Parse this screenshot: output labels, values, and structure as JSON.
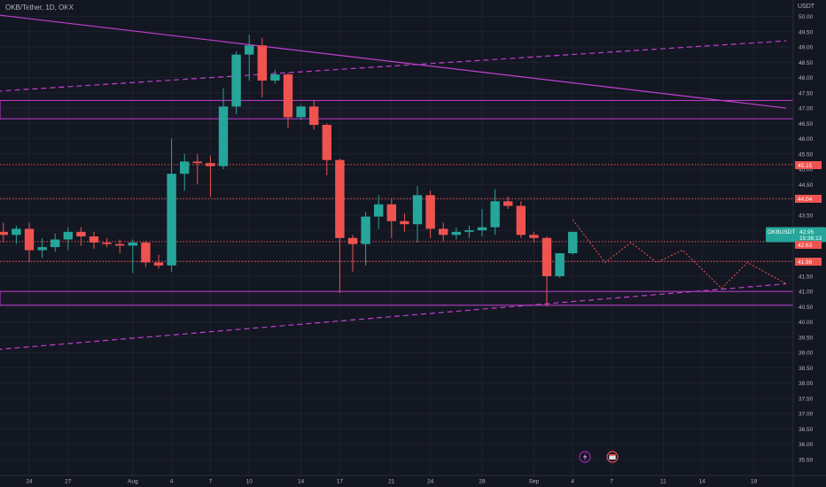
{
  "header": {
    "pair_title": "OKB/Tether, 1D, OKX",
    "currency": "USDT"
  },
  "colors": {
    "background": "#131722",
    "grid": "#1e222d",
    "up": "#26a69a",
    "down": "#ef5350",
    "trendline": "#c23fd0",
    "axis_text": "#b2b5be"
  },
  "price_labels": {
    "current_symbol": "OKBUSDT",
    "current_price": "42.95",
    "countdown": "15:38:13",
    "level_1": "45.15",
    "level_2": "44.04",
    "level_3": "42.63",
    "level_4": "41.98"
  },
  "icons": {
    "marker_1": "lightning-icon",
    "marker_2": "calendar-icon"
  },
  "chart_data": {
    "type": "candlestick",
    "title": "OKB/Tether, 1D, OKX",
    "y_unit": "USDT",
    "y_range": [
      35.3,
      50.25
    ],
    "y_ticks": [
      "50.00",
      "49.50",
      "49.00",
      "48.50",
      "48.00",
      "47.50",
      "47.00",
      "46.50",
      "46.00",
      "45.50",
      "45.00",
      "44.50",
      "44.00",
      "43.50",
      "43.00",
      "42.50",
      "42.00",
      "41.50",
      "41.00",
      "40.50",
      "40.00",
      "39.50",
      "39.00",
      "38.50",
      "38.00",
      "37.50",
      "37.00",
      "36.50",
      "36.00",
      "35.50"
    ],
    "x_ticks": [
      {
        "label": "24",
        "index": 2
      },
      {
        "label": "27",
        "index": 5
      },
      {
        "label": "Aug",
        "index": 10
      },
      {
        "label": "4",
        "index": 13
      },
      {
        "label": "7",
        "index": 16
      },
      {
        "label": "10",
        "index": 19
      },
      {
        "label": "14",
        "index": 23
      },
      {
        "label": "17",
        "index": 26
      },
      {
        "label": "21",
        "index": 30
      },
      {
        "label": "24",
        "index": 33
      },
      {
        "label": "28",
        "index": 37
      },
      {
        "label": "Sep",
        "index": 41
      },
      {
        "label": "4",
        "index": 44
      },
      {
        "label": "7",
        "index": 47
      },
      {
        "label": "11",
        "index": 51
      },
      {
        "label": "14",
        "index": 54
      },
      {
        "label": "18",
        "index": 58
      }
    ],
    "candles": [
      {
        "i": 0,
        "o": 42.95,
        "h": 43.25,
        "l": 42.6,
        "c": 42.85
      },
      {
        "i": 1,
        "o": 42.85,
        "h": 43.15,
        "l": 42.55,
        "c": 43.05
      },
      {
        "i": 2,
        "o": 43.05,
        "h": 43.25,
        "l": 41.95,
        "c": 42.35
      },
      {
        "i": 3,
        "o": 42.35,
        "h": 42.75,
        "l": 42.1,
        "c": 42.45
      },
      {
        "i": 4,
        "o": 42.45,
        "h": 42.9,
        "l": 42.3,
        "c": 42.7
      },
      {
        "i": 5,
        "o": 42.7,
        "h": 43.1,
        "l": 42.35,
        "c": 42.95
      },
      {
        "i": 6,
        "o": 42.95,
        "h": 43.1,
        "l": 42.5,
        "c": 42.8
      },
      {
        "i": 7,
        "o": 42.8,
        "h": 42.95,
        "l": 42.4,
        "c": 42.6
      },
      {
        "i": 8,
        "o": 42.6,
        "h": 42.75,
        "l": 42.45,
        "c": 42.55
      },
      {
        "i": 9,
        "o": 42.55,
        "h": 42.7,
        "l": 42.25,
        "c": 42.5
      },
      {
        "i": 10,
        "o": 42.5,
        "h": 42.7,
        "l": 41.6,
        "c": 42.6
      },
      {
        "i": 11,
        "o": 42.6,
        "h": 42.65,
        "l": 41.8,
        "c": 41.95
      },
      {
        "i": 12,
        "o": 41.95,
        "h": 42.2,
        "l": 41.75,
        "c": 41.85
      },
      {
        "i": 13,
        "o": 41.85,
        "h": 46.0,
        "l": 41.65,
        "c": 44.85
      },
      {
        "i": 14,
        "o": 44.85,
        "h": 45.5,
        "l": 44.3,
        "c": 45.25
      },
      {
        "i": 15,
        "o": 45.25,
        "h": 45.5,
        "l": 44.5,
        "c": 45.2
      },
      {
        "i": 16,
        "o": 45.2,
        "h": 45.45,
        "l": 44.1,
        "c": 45.1
      },
      {
        "i": 17,
        "o": 45.1,
        "h": 47.65,
        "l": 45.0,
        "c": 47.05
      },
      {
        "i": 18,
        "o": 47.05,
        "h": 48.85,
        "l": 46.8,
        "c": 48.75
      },
      {
        "i": 19,
        "o": 48.75,
        "h": 49.4,
        "l": 47.9,
        "c": 49.05
      },
      {
        "i": 20,
        "o": 49.05,
        "h": 49.3,
        "l": 47.35,
        "c": 47.9
      },
      {
        "i": 21,
        "o": 47.9,
        "h": 48.25,
        "l": 47.8,
        "c": 48.1
      },
      {
        "i": 22,
        "o": 48.1,
        "h": 48.15,
        "l": 46.35,
        "c": 46.7
      },
      {
        "i": 23,
        "o": 46.7,
        "h": 47.1,
        "l": 46.6,
        "c": 47.05
      },
      {
        "i": 24,
        "o": 47.05,
        "h": 47.25,
        "l": 46.3,
        "c": 46.45
      },
      {
        "i": 25,
        "o": 46.45,
        "h": 46.5,
        "l": 44.8,
        "c": 45.3
      },
      {
        "i": 26,
        "o": 45.3,
        "h": 45.35,
        "l": 40.95,
        "c": 42.75
      },
      {
        "i": 27,
        "o": 42.75,
        "h": 42.85,
        "l": 41.65,
        "c": 42.55
      },
      {
        "i": 28,
        "o": 42.55,
        "h": 43.6,
        "l": 41.85,
        "c": 43.45
      },
      {
        "i": 29,
        "o": 43.45,
        "h": 44.15,
        "l": 43.05,
        "c": 43.85
      },
      {
        "i": 30,
        "o": 43.85,
        "h": 44.05,
        "l": 42.75,
        "c": 43.3
      },
      {
        "i": 31,
        "o": 43.3,
        "h": 43.55,
        "l": 42.95,
        "c": 43.2
      },
      {
        "i": 32,
        "o": 43.2,
        "h": 44.45,
        "l": 42.6,
        "c": 44.15
      },
      {
        "i": 33,
        "o": 44.15,
        "h": 44.3,
        "l": 42.75,
        "c": 43.05
      },
      {
        "i": 34,
        "o": 43.05,
        "h": 43.25,
        "l": 42.65,
        "c": 42.85
      },
      {
        "i": 35,
        "o": 42.85,
        "h": 43.1,
        "l": 42.7,
        "c": 42.95
      },
      {
        "i": 36,
        "o": 42.95,
        "h": 43.15,
        "l": 42.75,
        "c": 43.0
      },
      {
        "i": 37,
        "o": 43.0,
        "h": 43.7,
        "l": 42.8,
        "c": 43.1
      },
      {
        "i": 38,
        "o": 43.1,
        "h": 44.35,
        "l": 42.85,
        "c": 43.95
      },
      {
        "i": 39,
        "o": 43.95,
        "h": 44.1,
        "l": 43.7,
        "c": 43.8
      },
      {
        "i": 40,
        "o": 43.8,
        "h": 43.95,
        "l": 42.75,
        "c": 42.85
      },
      {
        "i": 41,
        "o": 42.85,
        "h": 42.95,
        "l": 42.6,
        "c": 42.75
      },
      {
        "i": 42,
        "o": 42.75,
        "h": 42.8,
        "l": 40.5,
        "c": 41.5
      },
      {
        "i": 43,
        "o": 41.5,
        "h": 42.25,
        "l": 41.45,
        "c": 42.25
      },
      {
        "i": 44,
        "o": 42.25,
        "h": 42.95,
        "l": 42.2,
        "c": 42.95
      }
    ],
    "horizontal_levels": [
      45.15,
      44.04,
      42.63,
      41.98
    ],
    "zones": [
      [
        46.65,
        47.25
      ],
      [
        40.55,
        41.0
      ]
    ],
    "trendlines": [
      {
        "style": "solid",
        "from": [
          -0.5,
          50.05
        ],
        "to": [
          60.5,
          47.0
        ]
      },
      {
        "style": "dashed",
        "from": [
          -0.5,
          47.55
        ],
        "to": [
          60.5,
          49.2
        ]
      },
      {
        "style": "dashed",
        "from": [
          -0.5,
          39.1
        ],
        "to": [
          60.5,
          41.25
        ]
      }
    ],
    "projection_path": [
      [
        44.0,
        43.35
      ],
      [
        46.5,
        41.95
      ],
      [
        48.5,
        42.6
      ],
      [
        50.5,
        41.95
      ],
      [
        52.5,
        42.35
      ],
      [
        55.5,
        41.1
      ],
      [
        57.5,
        41.95
      ],
      [
        60.5,
        41.25
      ]
    ],
    "grid": true,
    "legend": "none"
  }
}
